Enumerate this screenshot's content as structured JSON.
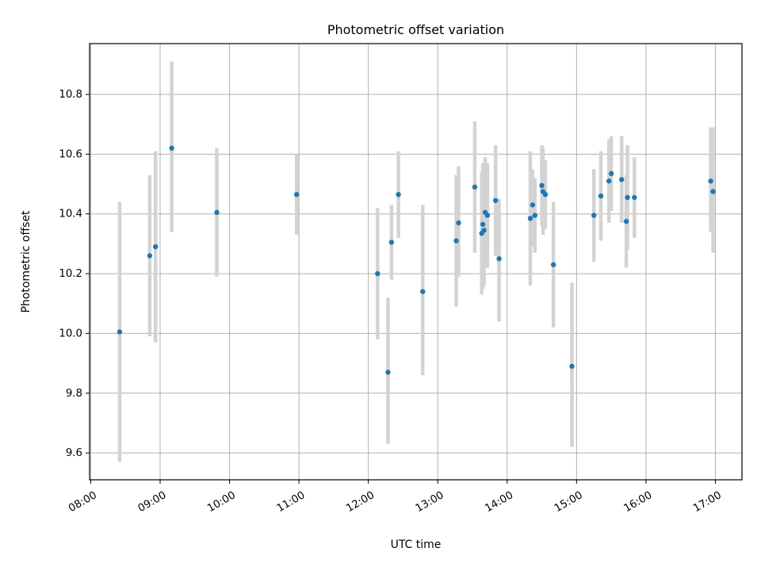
{
  "chart_data": {
    "type": "scatter",
    "title": "Photometric offset variation",
    "xlabel": "UTC time",
    "ylabel": "Photometric offset",
    "x_unit": "UTC time (HH:MM)",
    "xlim": [
      "07:59",
      "17:23"
    ],
    "ylim": [
      9.51,
      10.97
    ],
    "grid": true,
    "x_ticks": [
      "08:00",
      "09:00",
      "10:00",
      "11:00",
      "12:00",
      "13:00",
      "14:00",
      "15:00",
      "16:00",
      "17:00"
    ],
    "y_ticks": [
      9.6,
      9.8,
      10.0,
      10.2,
      10.4,
      10.6,
      10.8
    ],
    "y_tick_labels": [
      "9.6",
      "9.8",
      "10.0",
      "10.2",
      "10.4",
      "10.6",
      "10.8"
    ],
    "colors": {
      "points": "#1f77b4",
      "error_bars": "#d3d3d3",
      "grid": "#b0b0b0"
    },
    "series": [
      {
        "marker": "point",
        "points": [
          {
            "t": "08:25",
            "y": 10.005,
            "lo": 9.57,
            "hi": 10.44
          },
          {
            "t": "08:51",
            "y": 10.26,
            "lo": 9.99,
            "hi": 10.53
          },
          {
            "t": "08:56",
            "y": 10.29,
            "lo": 9.97,
            "hi": 10.61
          },
          {
            "t": "09:10",
            "y": 10.62,
            "lo": 10.34,
            "hi": 10.91
          },
          {
            "t": "09:49",
            "y": 10.405,
            "lo": 10.19,
            "hi": 10.62
          },
          {
            "t": "10:58",
            "y": 10.465,
            "lo": 10.33,
            "hi": 10.6
          },
          {
            "t": "12:08",
            "y": 10.2,
            "lo": 9.98,
            "hi": 10.42
          },
          {
            "t": "12:17",
            "y": 9.87,
            "lo": 9.63,
            "hi": 10.12
          },
          {
            "t": "12:20",
            "y": 10.305,
            "lo": 10.18,
            "hi": 10.43
          },
          {
            "t": "12:26",
            "y": 10.465,
            "lo": 10.32,
            "hi": 10.61
          },
          {
            "t": "12:47",
            "y": 10.14,
            "lo": 9.86,
            "hi": 10.43
          },
          {
            "t": "13:16",
            "y": 10.31,
            "lo": 10.09,
            "hi": 10.53
          },
          {
            "t": "13:18",
            "y": 10.37,
            "lo": 10.19,
            "hi": 10.56
          },
          {
            "t": "13:32",
            "y": 10.49,
            "lo": 10.27,
            "hi": 10.71
          },
          {
            "t": "13:38",
            "y": 10.335,
            "lo": 10.13,
            "hi": 10.54
          },
          {
            "t": "13:39",
            "y": 10.365,
            "lo": 10.15,
            "hi": 10.57
          },
          {
            "t": "13:40",
            "y": 10.345,
            "lo": 10.16,
            "hi": 10.57
          },
          {
            "t": "13:41",
            "y": 10.405,
            "lo": 10.22,
            "hi": 10.59
          },
          {
            "t": "13:43",
            "y": 10.395,
            "lo": 10.22,
            "hi": 10.57
          },
          {
            "t": "13:50",
            "y": 10.445,
            "lo": 10.26,
            "hi": 10.63
          },
          {
            "t": "13:53",
            "y": 10.25,
            "lo": 10.04,
            "hi": 10.45
          },
          {
            "t": "14:20",
            "y": 10.385,
            "lo": 10.16,
            "hi": 10.61
          },
          {
            "t": "14:22",
            "y": 10.43,
            "lo": 10.29,
            "hi": 10.55
          },
          {
            "t": "14:24",
            "y": 10.395,
            "lo": 10.27,
            "hi": 10.52
          },
          {
            "t": "14:30",
            "y": 10.495,
            "lo": 10.36,
            "hi": 10.63
          },
          {
            "t": "14:31",
            "y": 10.475,
            "lo": 10.33,
            "hi": 10.62
          },
          {
            "t": "14:33",
            "y": 10.465,
            "lo": 10.35,
            "hi": 10.58
          },
          {
            "t": "14:40",
            "y": 10.23,
            "lo": 10.02,
            "hi": 10.44
          },
          {
            "t": "14:56",
            "y": 9.89,
            "lo": 9.62,
            "hi": 10.17
          },
          {
            "t": "15:15",
            "y": 10.395,
            "lo": 10.24,
            "hi": 10.55
          },
          {
            "t": "15:21",
            "y": 10.46,
            "lo": 10.31,
            "hi": 10.61
          },
          {
            "t": "15:28",
            "y": 10.51,
            "lo": 10.37,
            "hi": 10.65
          },
          {
            "t": "15:30",
            "y": 10.535,
            "lo": 10.41,
            "hi": 10.66
          },
          {
            "t": "15:39",
            "y": 10.515,
            "lo": 10.37,
            "hi": 10.66
          },
          {
            "t": "15:43",
            "y": 10.375,
            "lo": 10.22,
            "hi": 10.53
          },
          {
            "t": "15:44",
            "y": 10.455,
            "lo": 10.28,
            "hi": 10.63
          },
          {
            "t": "15:50",
            "y": 10.455,
            "lo": 10.32,
            "hi": 10.59
          },
          {
            "t": "16:56",
            "y": 10.51,
            "lo": 10.34,
            "hi": 10.69
          },
          {
            "t": "16:58",
            "y": 10.475,
            "lo": 10.27,
            "hi": 10.69
          }
        ]
      }
    ]
  }
}
